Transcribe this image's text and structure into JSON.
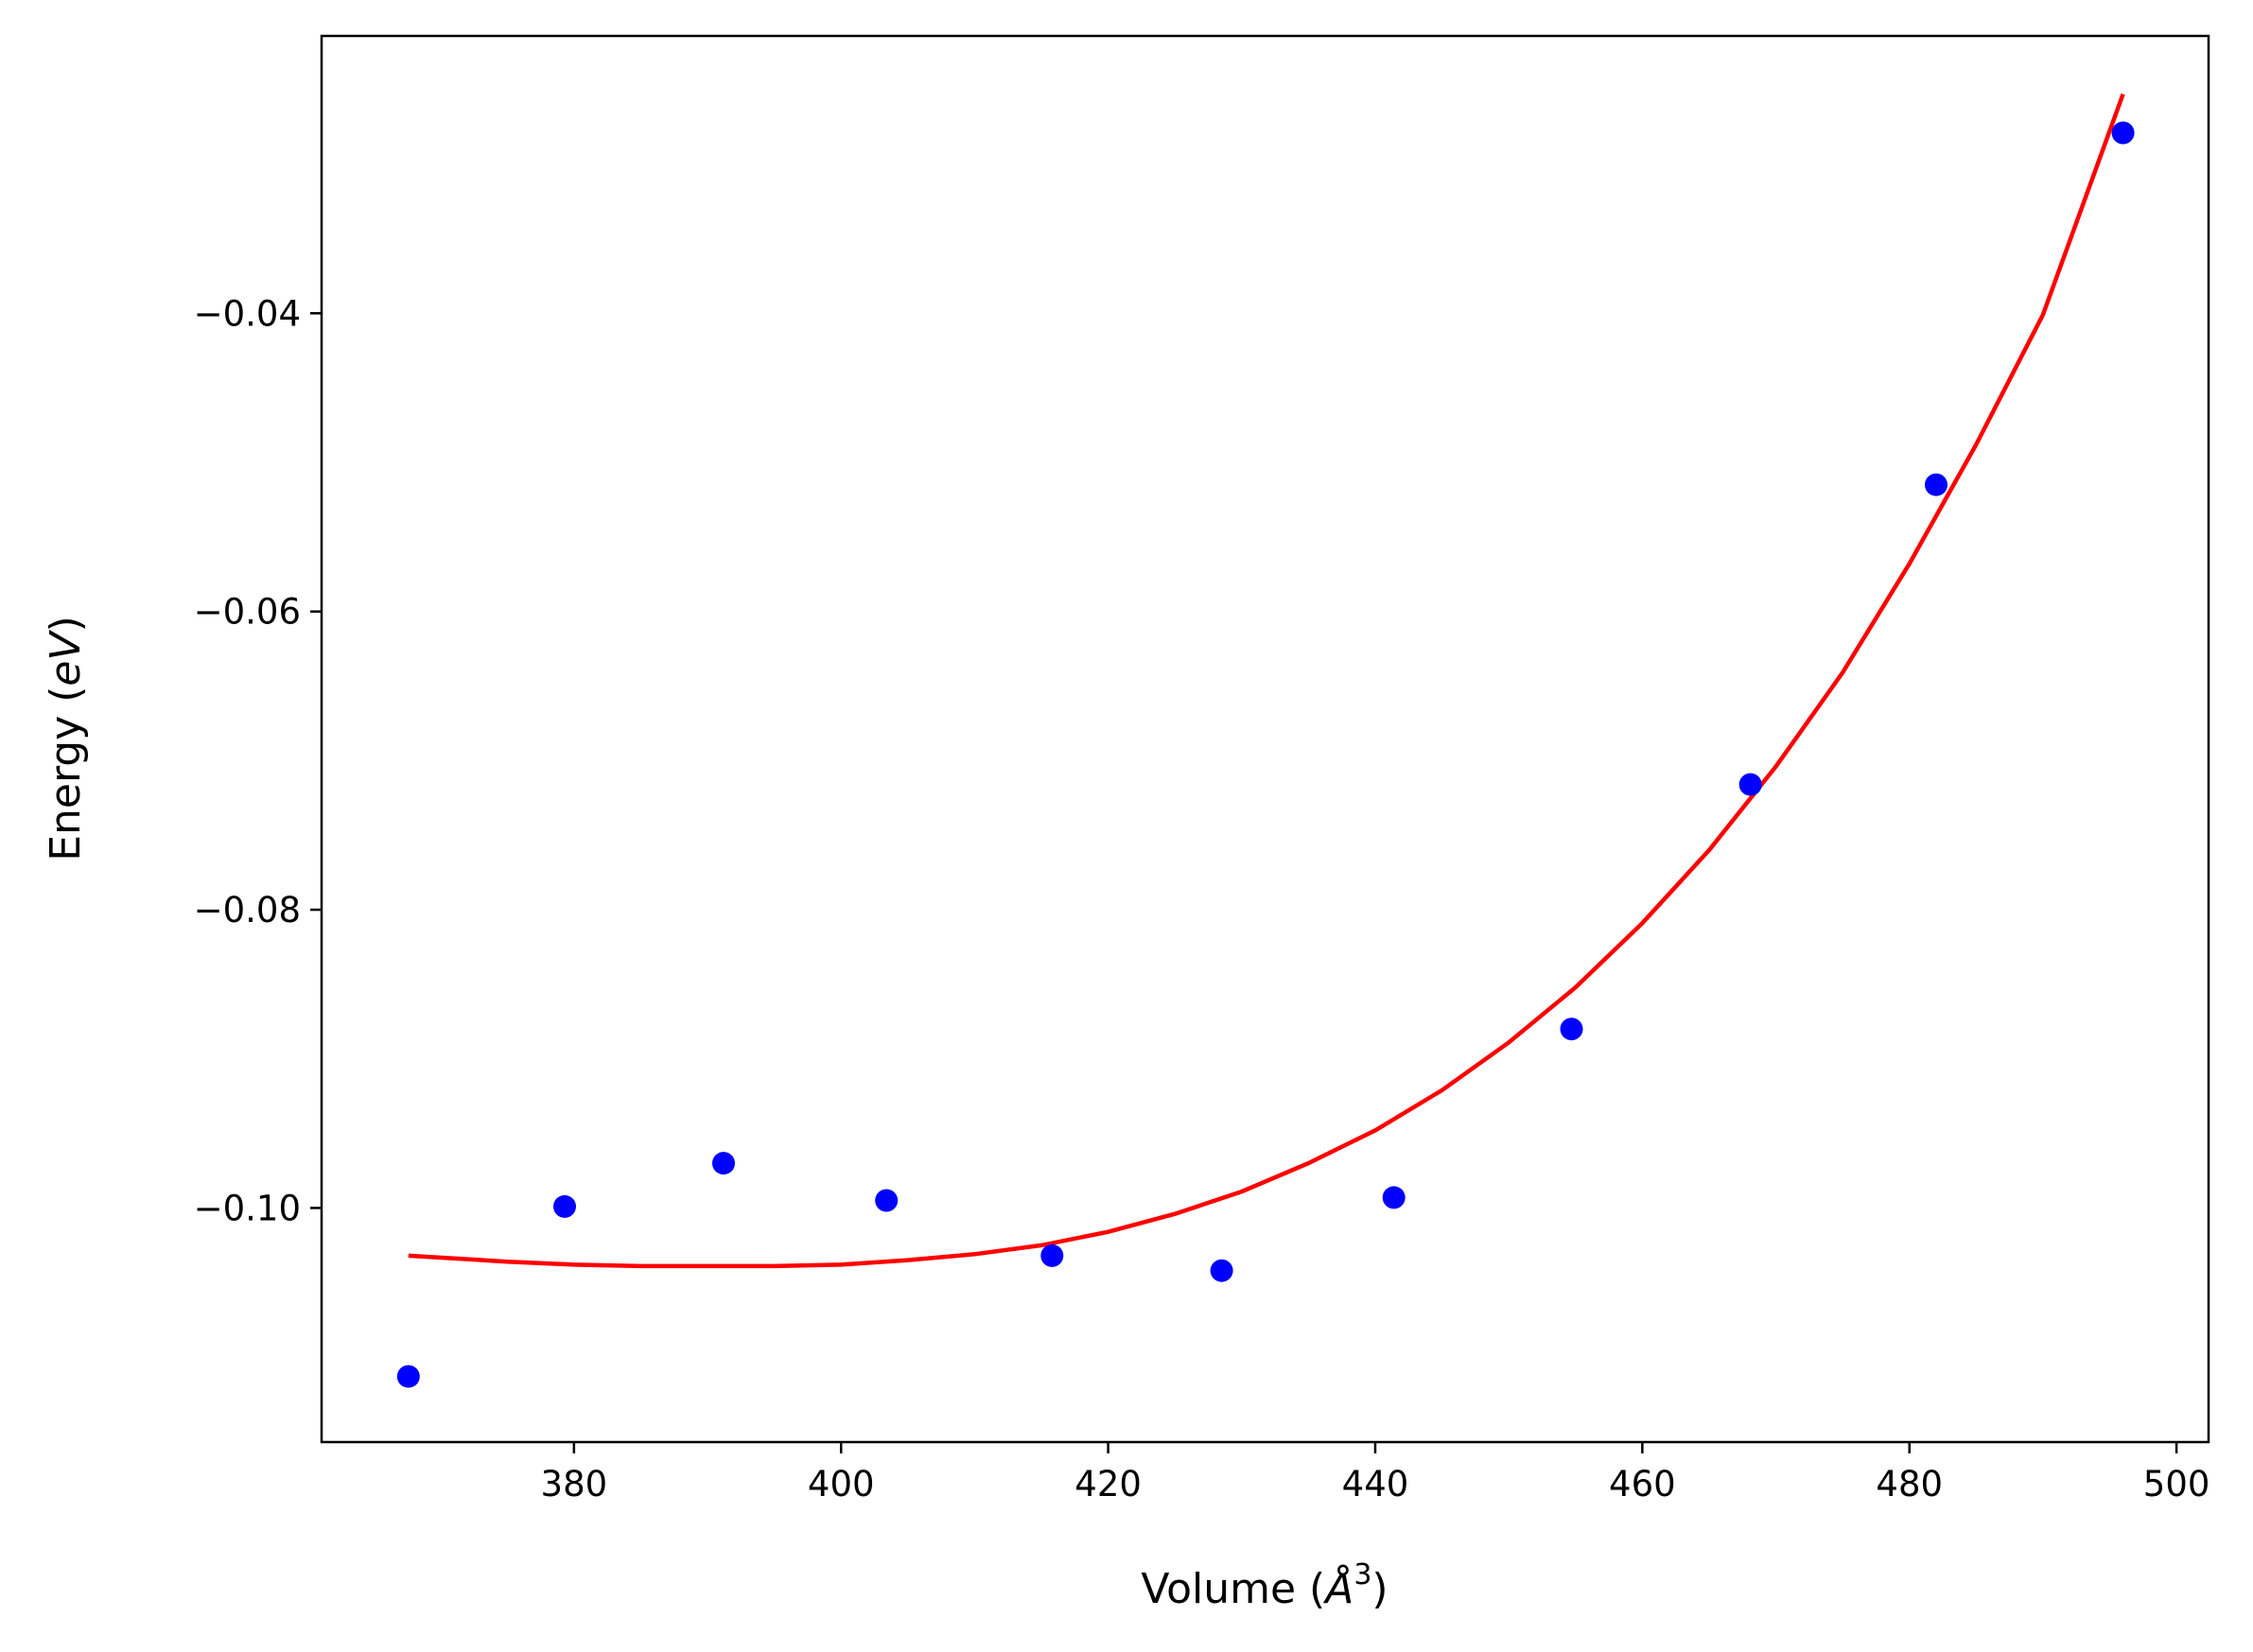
{
  "chart_data": {
    "type": "scatter",
    "title": "",
    "xlabel_parts": [
      "Volume (",
      "Å",
      "3",
      ")"
    ],
    "ylabel_parts": [
      "Energy (",
      "eV",
      ")"
    ],
    "xlim": [
      361.1,
      502.4
    ],
    "ylim": [
      -0.1157,
      -0.0214
    ],
    "xticks": [
      380,
      400,
      420,
      440,
      460,
      480,
      500
    ],
    "xtick_labels": [
      "380",
      "400",
      "420",
      "440",
      "460",
      "480",
      "500"
    ],
    "yticks": [
      -0.1,
      -0.08,
      -0.06,
      -0.04
    ],
    "ytick_labels": [
      "−0.10",
      "−0.08",
      "−0.06",
      "−0.04"
    ],
    "grid": false,
    "series": [
      {
        "type": "scatter",
        "color": "#0000ff",
        "x": [
          367.6,
          379.3,
          391.2,
          403.4,
          415.8,
          428.5,
          441.4,
          454.7,
          468.1,
          482.0,
          496.0
        ],
        "y": [
          -0.1113,
          -0.0999,
          -0.097,
          -0.0995,
          -0.1032,
          -0.1042,
          -0.0993,
          -0.088,
          -0.0716,
          -0.0515,
          -0.0279
        ]
      },
      {
        "type": "line",
        "color": "#ff0000",
        "x": [
          367.6,
          375,
          380,
          385,
          390,
          395,
          400,
          405,
          410,
          415,
          420,
          425,
          430,
          435,
          440,
          445,
          450,
          455,
          460,
          465,
          470,
          475,
          480,
          485,
          490,
          496.0
        ],
        "y": [
          -0.1032,
          -0.1036,
          -0.1038,
          -0.1039,
          -0.1039,
          -0.1039,
          -0.1038,
          -0.1035,
          -0.1031,
          -0.1025,
          -0.1016,
          -0.1004,
          -0.0989,
          -0.097,
          -0.0948,
          -0.0921,
          -0.0889,
          -0.0852,
          -0.0809,
          -0.076,
          -0.0704,
          -0.0641,
          -0.0568,
          -0.0488,
          -0.0401,
          -0.0253
        ]
      }
    ]
  }
}
